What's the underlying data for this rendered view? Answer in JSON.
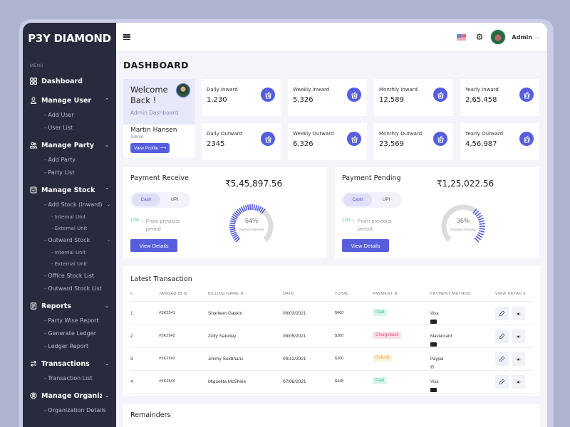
{
  "brand": "P3Y DIAMOND",
  "sidebar": {
    "menu_label": "MENU",
    "items": [
      {
        "label": "Dashboard",
        "icon": "grid-icon"
      },
      {
        "label": "Manage User",
        "icon": "user-icon",
        "expanded": true,
        "sub": [
          "- Add User",
          "- User List"
        ]
      },
      {
        "label": "Manage Party",
        "icon": "users-icon",
        "expanded": false,
        "sub": [
          "- Add Party",
          "- Party List"
        ]
      },
      {
        "label": "Manage Stock",
        "icon": "box-icon",
        "expanded": true,
        "sub": [
          "- Add Stock (Inward)",
          "- Internal Unit",
          "- External Unit",
          "- Outward Stock",
          "- Internal Unit",
          "- External Unit",
          "- Office Stock List",
          "- Outward Stock List"
        ]
      },
      {
        "label": "Reports",
        "icon": "report-icon",
        "expanded": false,
        "sub": [
          "- Party Wise Report",
          "- Generate Ledger",
          "- Ledger Report"
        ]
      },
      {
        "label": "Transactions",
        "icon": "transfer-icon",
        "expanded": false,
        "sub": [
          "- Transaction List"
        ]
      },
      {
        "label": "Manage Organiza..",
        "icon": "organization-icon",
        "expanded": false,
        "sub": [
          "- Organization Details"
        ]
      }
    ]
  },
  "topbar": {
    "user_name": "Admin"
  },
  "page_title": "DASHBOARD",
  "welcome": {
    "title": "Welcome Back !",
    "subtitle": "Admin Dashboard",
    "name": "Martin Hansen",
    "role": "Admin",
    "button": "View Profile ⟶"
  },
  "stats": [
    {
      "label": "Daily Inward",
      "value": "1,230"
    },
    {
      "label": "Weekly Inward",
      "value": "5,326"
    },
    {
      "label": "Monthly Inward",
      "value": "12,589"
    },
    {
      "label": "Yearly Inward",
      "value": "2,65,458"
    },
    {
      "label": "Daily Outward",
      "value": "2345"
    },
    {
      "label": "Weekly Outward",
      "value": "6,326"
    },
    {
      "label": "Monthly Outward",
      "value": "23,569"
    },
    {
      "label": "Yearly Outward",
      "value": "4,56,987"
    }
  ],
  "payments": [
    {
      "title": "Payment Receive",
      "amount": "₹5,45,897.56",
      "toggle": [
        "Cash",
        "UPI"
      ],
      "active": "Cash",
      "trend_pct": "12%",
      "trend_text": "From previous period",
      "button": "View Details",
      "gauge_pct": "64%",
      "gauge_label": "Payment Receive",
      "gauge_value": 64
    },
    {
      "title": "Payment Pending",
      "amount": "₹1,25,022.56",
      "toggle": [
        "Cash",
        "UPI"
      ],
      "active": "Cash",
      "trend_pct": "12%",
      "trend_text": "From previous period",
      "button": "View Details",
      "gauge_pct": "36%",
      "gauge_label": "Payment Pending",
      "gauge_value": 36
    }
  ],
  "transactions": {
    "title": "Latest Transaction",
    "columns": [
      "#",
      "JANGAD ID ⇅",
      "BILLING NAME ⇅",
      "DATE",
      "TOTAL",
      "PAYMENT ⇅",
      "PAYMENT METHOD",
      "VIEW DETAILS"
    ],
    "rows": [
      {
        "n": "1",
        "id": "#SK2541",
        "name": "Sharleen Gaskin",
        "date": "06/03/2021",
        "total": "$400",
        "payment": "Paid",
        "method": "Visa"
      },
      {
        "n": "2",
        "id": "#SK2542",
        "name": "Zolly Saturley",
        "date": "08/05/2021",
        "total": "$380",
        "payment": "Chargeback",
        "method": "Mastercard"
      },
      {
        "n": "3",
        "id": "#SK2543",
        "name": "Jimmy Sukbhans",
        "date": "09/12/2021",
        "total": "$200",
        "payment": "Refund",
        "method": "Paypal"
      },
      {
        "n": "4",
        "id": "#SK2544",
        "name": "Miguelita McShirie",
        "date": "07/06/2021",
        "total": "$448",
        "payment": "Paid",
        "method": "Visa"
      }
    ]
  },
  "remainders": {
    "title": "Remainders"
  },
  "colors": {
    "sidebar_bg": "#272b3d",
    "accent": "#565ede",
    "paid_bg": "#dcf5ec",
    "paid_fg": "#2fb98a",
    "chargeback_bg": "#fde0e6",
    "chargeback_fg": "#e5537a",
    "refund_bg": "#fff1dc",
    "refund_fg": "#f2a43a"
  }
}
